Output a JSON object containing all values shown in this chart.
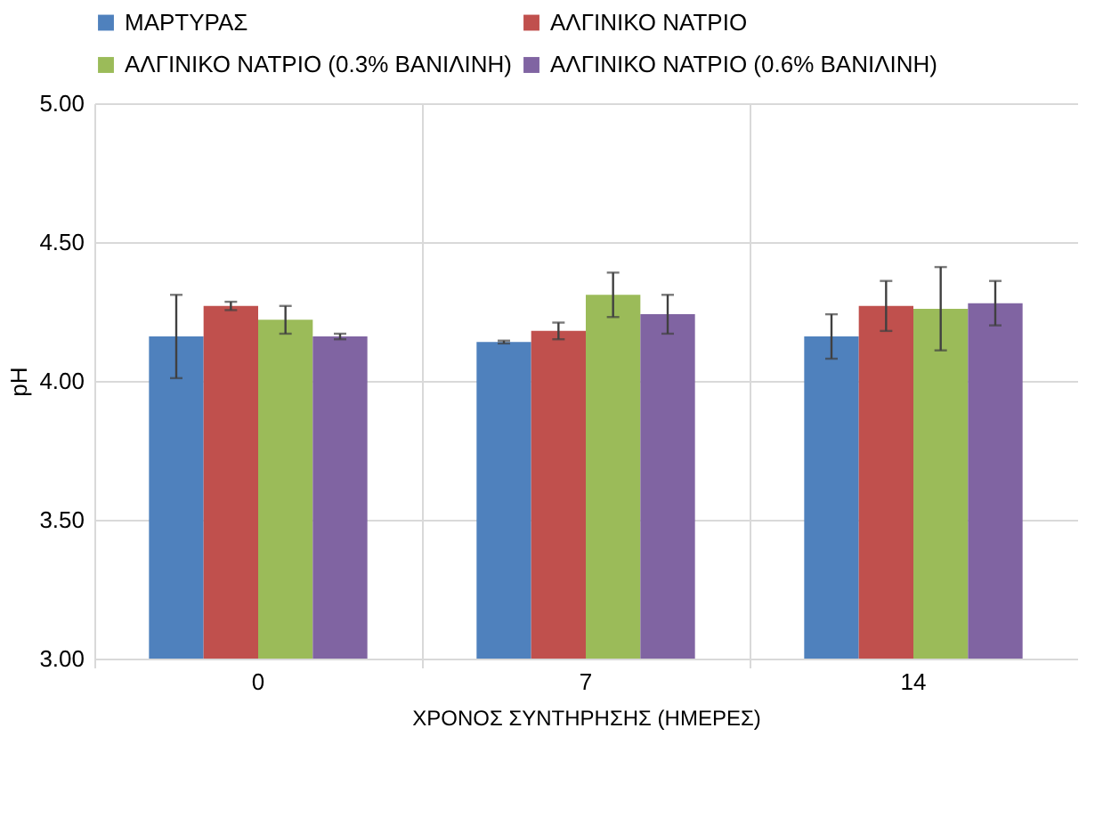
{
  "chart_data": {
    "type": "bar",
    "xlabel": "ΧΡΟΝΟΣ ΣΥΝΤΗΡΗΣΗΣ (ΗΜΕΡΕΣ)",
    "ylabel": "pH",
    "categories": [
      "0",
      "7",
      "14"
    ],
    "series": [
      {
        "name": "ΜΑΡΤΥΡΑΣ",
        "color": "#4f81bd",
        "values": [
          4.16,
          4.14,
          4.16
        ],
        "errors": [
          0.15,
          0.005,
          0.08
        ]
      },
      {
        "name": "ΑΛΓΙΝΙΚΟ ΝΑΤΡΙΟ",
        "color": "#c0504d",
        "values": [
          4.27,
          4.18,
          4.27
        ],
        "errors": [
          0.015,
          0.03,
          0.09
        ]
      },
      {
        "name": "ΑΛΓΙΝΙΚΟ ΝΑΤΡΙΟ (0.3% ΒΑΝΙΛΙΝΗ)",
        "color": "#9bbb59",
        "values": [
          4.22,
          4.31,
          4.26
        ],
        "errors": [
          0.05,
          0.08,
          0.15
        ]
      },
      {
        "name": "ΑΛΓΙΝΙΚΟ ΝΑΤΡΙΟ (0.6% ΒΑΝΙΛΙΝΗ)",
        "color": "#8064a2",
        "values": [
          4.16,
          4.24,
          4.28
        ],
        "errors": [
          0.01,
          0.07,
          0.08
        ]
      }
    ],
    "ylim": [
      3,
      5
    ],
    "yticks": [
      {
        "value": 3,
        "label": "3.00"
      },
      {
        "value": 3.5,
        "label": "3.50"
      },
      {
        "value": 4,
        "label": "4.00"
      },
      {
        "value": 4.5,
        "label": "4.50"
      },
      {
        "value": 5,
        "label": "5.00"
      }
    ],
    "grid": true,
    "legend": "top"
  }
}
